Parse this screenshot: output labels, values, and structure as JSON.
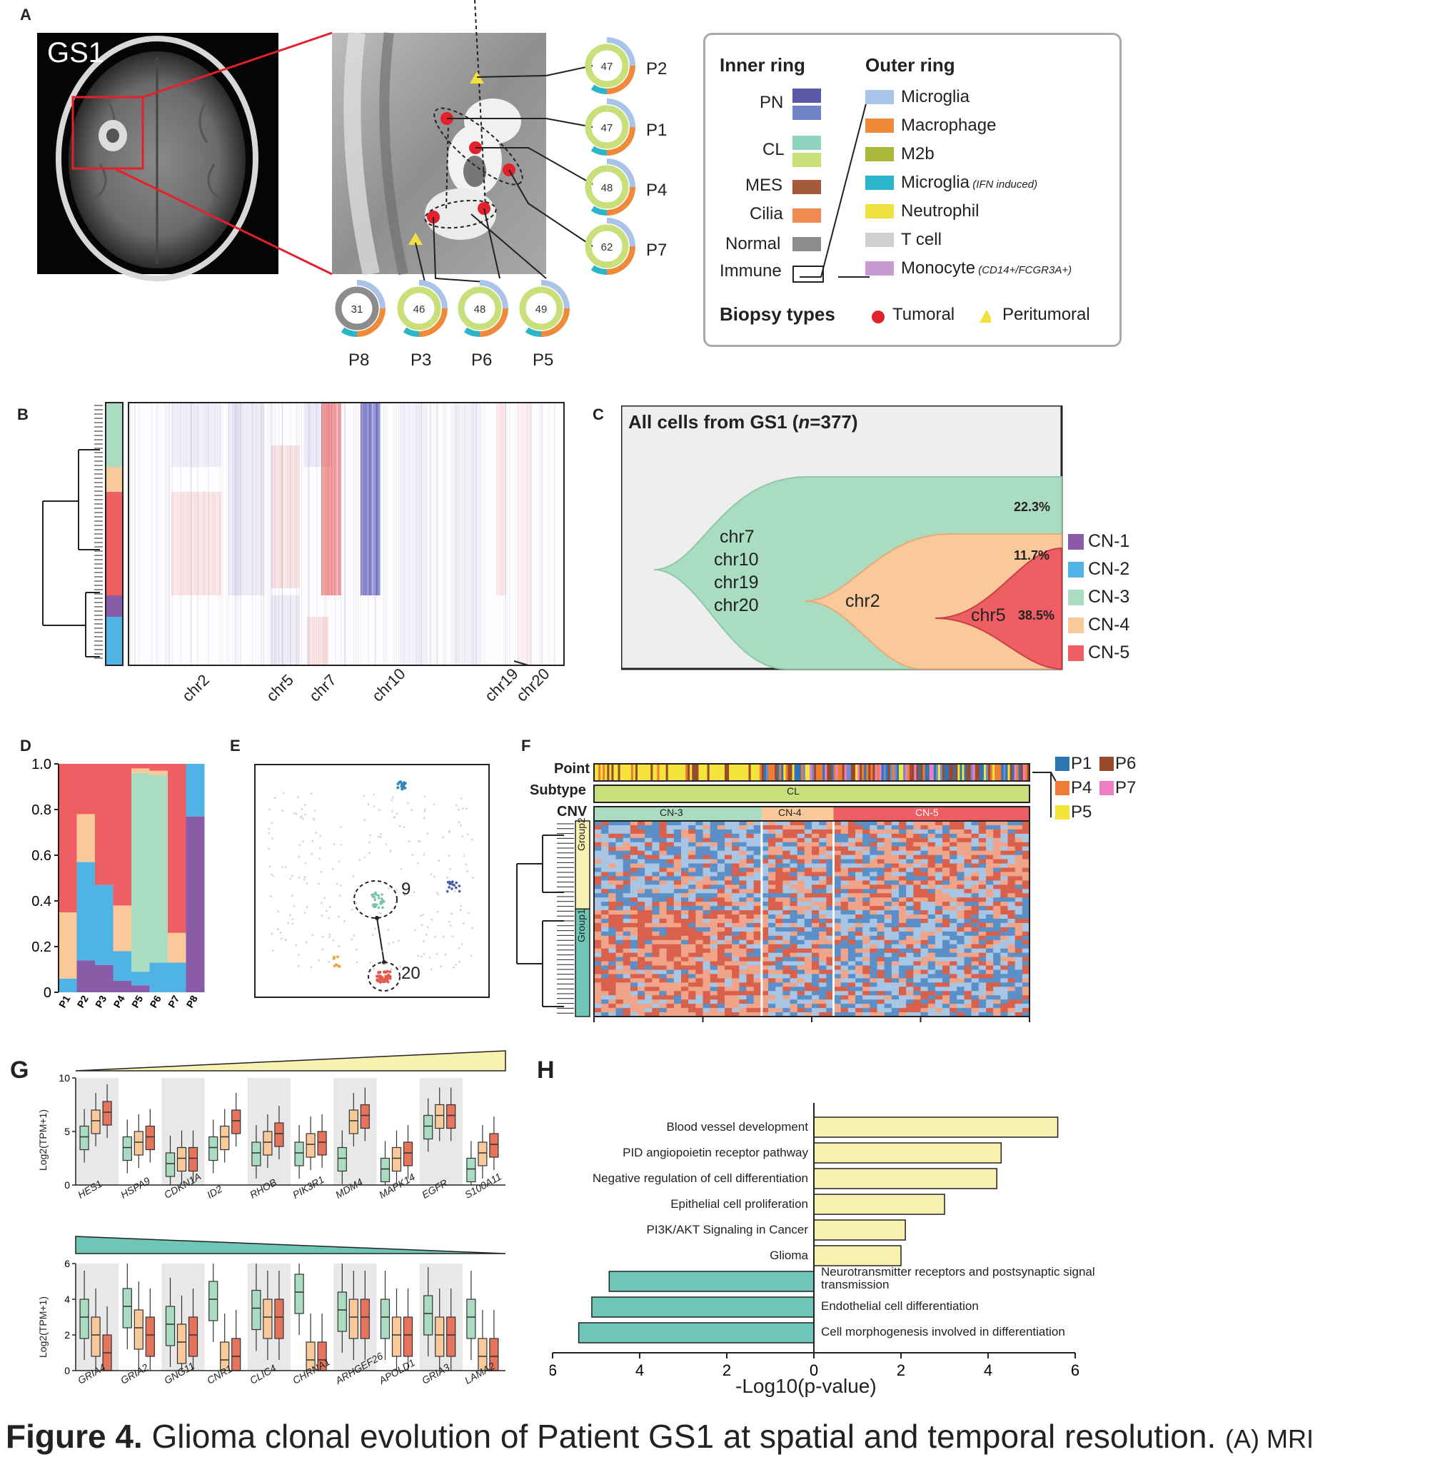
{
  "panel_labels": [
    "A",
    "B",
    "C",
    "D",
    "E",
    "F",
    "G",
    "H"
  ],
  "panelA": {
    "mri_label": "GS1",
    "donuts": [
      {
        "id": "P2",
        "value": "47"
      },
      {
        "id": "P1",
        "value": "47"
      },
      {
        "id": "P4",
        "value": "48"
      },
      {
        "id": "P7",
        "value": "62"
      },
      {
        "id": "P8",
        "value": "31"
      },
      {
        "id": "P3",
        "value": "46"
      },
      {
        "id": "P6",
        "value": "48"
      },
      {
        "id": "P5",
        "value": "49"
      }
    ],
    "legend": {
      "inner_title": "Inner ring",
      "outer_title": "Outer ring",
      "inner_items": [
        "PN",
        "CL",
        "MES",
        "Cilia",
        "Normal",
        "Immune"
      ],
      "inner_colors": [
        "#5b58a6",
        "#6f84c4",
        "#8fd3c0",
        "#c9e07a",
        "#a65a3c",
        "#f28b52",
        "#8c8c8c",
        "#ffffff"
      ],
      "outer_items": [
        {
          "label": "Microglia",
          "note": "",
          "color": "#a9c4e8"
        },
        {
          "label": "Macrophage",
          "note": "",
          "color": "#ef8a3a"
        },
        {
          "label": "M2b",
          "note": "",
          "color": "#a8b83a"
        },
        {
          "label": "Microglia",
          "note": "(IFN induced)",
          "color": "#2bb5c9"
        },
        {
          "label": "Neutrophil",
          "note": "",
          "color": "#f2e13c"
        },
        {
          "label": "T cell",
          "note": "",
          "color": "#d0d0d0"
        },
        {
          "label": "Monocyte",
          "note": "(CD14+/FCGR3A+)",
          "color": "#c79ad6"
        }
      ],
      "biopsy_title": "Biopsy types",
      "biopsy_items": [
        "Tumoral",
        "Peritumoral"
      ]
    }
  },
  "panelB": {
    "chrom_labels": [
      "chr2",
      "chr5",
      "chr7",
      "chr10",
      "chr19",
      "chr20"
    ]
  },
  "panelC": {
    "title_prefix": "All cells from GS1 (",
    "title_n": "n",
    "title_suffix": "=377)",
    "clone_labels": [
      "chr7",
      "chr10",
      "chr19",
      "chr20"
    ],
    "chr2_label": "chr2",
    "chr5_label": "chr5",
    "pct_values": [
      "22.3%",
      "11.7%",
      "38.5%"
    ],
    "legend": [
      {
        "label": "CN-1",
        "color": "#8a5ca8"
      },
      {
        "label": "CN-2",
        "color": "#4fb3e6"
      },
      {
        "label": "CN-3",
        "color": "#a9dcc0"
      },
      {
        "label": "CN-4",
        "color": "#f9c99a"
      },
      {
        "label": "CN-5",
        "color": "#ee5e62"
      }
    ]
  },
  "panelE": {
    "cluster_labels": [
      "9",
      "20"
    ]
  },
  "panelF": {
    "row_labels": [
      "Point",
      "Subtype",
      "CNV"
    ],
    "subtype_label": "CL",
    "cnv_labels": [
      "CN-3",
      "CN-4",
      "CN-5"
    ],
    "group_labels": [
      "Group2",
      "Group1"
    ],
    "legend": [
      {
        "label": "P1",
        "color": "#2f74b5"
      },
      {
        "label": "P6",
        "color": "#9a4a2a"
      },
      {
        "label": "P4",
        "color": "#ee7c33"
      },
      {
        "label": "P7",
        "color": "#ee7fc0"
      },
      {
        "label": "P5",
        "color": "#f4e43c"
      }
    ]
  },
  "panelG": {
    "ylabel": "Log2(TPM+1)",
    "top_genes": [
      "HES1",
      "HSPA9",
      "CDKN1A",
      "ID2",
      "RHOB",
      "PIK3R1",
      "MDM4",
      "MAPK14",
      "EGFR",
      "S100A11"
    ],
    "top_ticks": [
      "10",
      "5",
      "0"
    ],
    "bottom_genes": [
      "GRIA4",
      "GRIA2",
      "GNG11",
      "CNR1",
      "CLIC4",
      "CHRNA1",
      "ARHGEF26",
      "APOLD1",
      "GRIA3",
      "LAMA2"
    ],
    "bottom_ticks": [
      "6",
      "4",
      "2",
      "0"
    ]
  },
  "chart_data": [
    {
      "type": "bar",
      "panel": "D",
      "stacked": true,
      "categories": [
        "P1",
        "P2",
        "P3",
        "P4",
        "P5",
        "P6",
        "P7",
        "P8"
      ],
      "ylim": [
        0,
        1.0
      ],
      "yticks": [
        "0",
        "0.2",
        "0.4",
        "0.6",
        "0.8",
        "1.0"
      ],
      "series": [
        {
          "name": "CN-1",
          "color": "#8a5ca8",
          "values": [
            0.0,
            0.14,
            0.12,
            0.05,
            0.03,
            0.0,
            0.0,
            0.77
          ]
        },
        {
          "name": "CN-2",
          "color": "#4fb3e6",
          "values": [
            0.06,
            0.43,
            0.35,
            0.13,
            0.06,
            0.13,
            0.13,
            0.23
          ]
        },
        {
          "name": "CN-3",
          "color": "#a9dcc0",
          "values": [
            0.0,
            0.0,
            0.0,
            0.0,
            0.87,
            0.82,
            0.0,
            0.0
          ]
        },
        {
          "name": "CN-4",
          "color": "#f9c99a",
          "values": [
            0.29,
            0.21,
            0.0,
            0.2,
            0.02,
            0.02,
            0.13,
            0.0
          ]
        },
        {
          "name": "CN-5",
          "color": "#ee5e62",
          "values": [
            0.65,
            0.22,
            0.53,
            0.62,
            0.02,
            0.03,
            0.74,
            0.0
          ]
        }
      ]
    },
    {
      "type": "bar",
      "panel": "H",
      "orientation": "horizontal",
      "xlabel": "-Log10(p-value)",
      "xticks": [
        "6",
        "4",
        "2",
        "0",
        "2",
        "4",
        "6"
      ],
      "categories": [
        "Blood vessel development",
        "PID angiopoietin receptor pathway",
        "Negative regulation of cell differentiation",
        "Epithelial cell proliferation",
        "PI3K/AKT Signaling in Cancer",
        "Glioma",
        "Neurotransmitter receptors and postsynaptic signal transmission",
        "Endothelial cell differentiation",
        "Cell morphogenesis involved in differentiation"
      ],
      "values": [
        5.6,
        4.3,
        4.2,
        3.0,
        2.1,
        2.0,
        -4.7,
        -5.1,
        -5.4
      ],
      "colors": {
        "up": "#f9f1b0",
        "down": "#6ec7b6"
      }
    }
  ]
}
